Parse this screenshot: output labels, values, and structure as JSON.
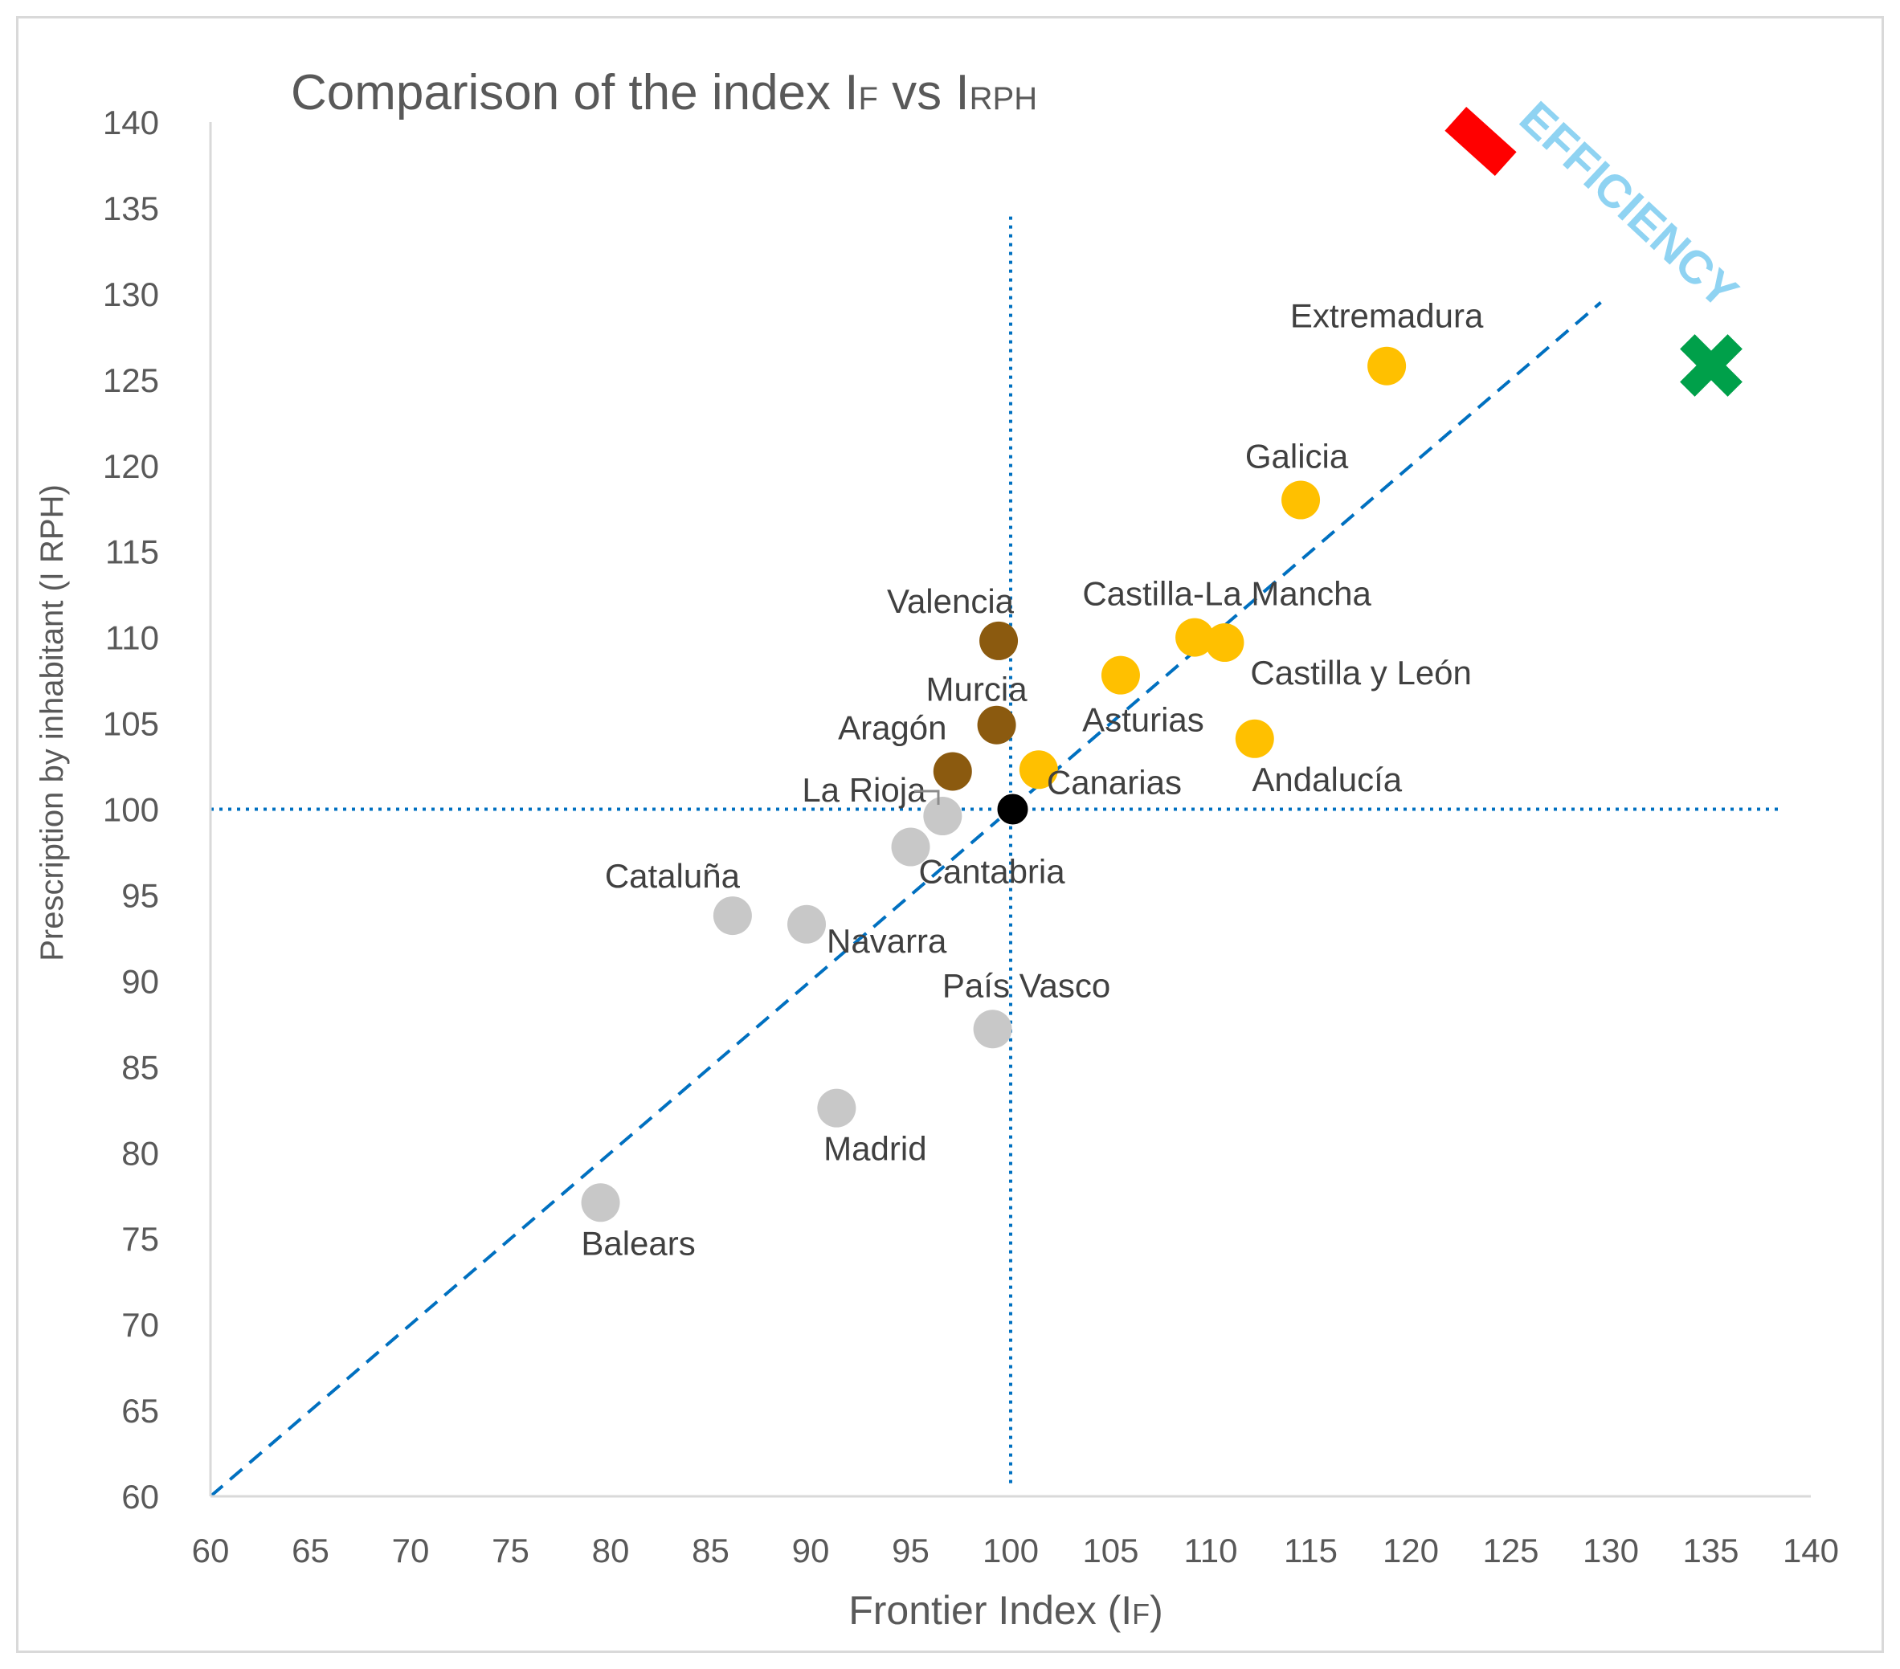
{
  "chart_data": {
    "type": "scatter",
    "title_main": "Comparison of the index I",
    "title_sub1": "F",
    "title_mid": " vs I",
    "title_sub2": "RPH",
    "xlabel_main": "Frontier Index (I",
    "xlabel_sub": "F",
    "xlabel_end": ")",
    "ylabel": "Prescription by inhabitant (I RPH)",
    "xlim": [
      60,
      140
    ],
    "ylim": [
      60,
      140
    ],
    "xticks": [
      "60",
      "65",
      "70",
      "75",
      "80",
      "85",
      "90",
      "95",
      "100",
      "105",
      "110",
      "115",
      "120",
      "125",
      "130",
      "135",
      "140"
    ],
    "yticks": [
      "60",
      "65",
      "70",
      "75",
      "80",
      "85",
      "90",
      "95",
      "100",
      "105",
      "110",
      "115",
      "120",
      "125",
      "130",
      "135",
      "140"
    ],
    "reference_x": 100,
    "reference_y": 100,
    "diagonal": {
      "from": [
        60,
        60
      ],
      "to": [
        129.5,
        129.5
      ]
    },
    "efficiency_label": "EFFICIENCY",
    "colors": {
      "yellow": "#ffc000",
      "brown": "#8b5a0f",
      "grey": "#c8c8c8",
      "reference": "#000000",
      "lines": "#0070c0"
    },
    "points": [
      {
        "label": "Extremadura",
        "x": 118.8,
        "y": 125.8,
        "group": "yellow"
      },
      {
        "label": "Galicia",
        "x": 114.5,
        "y": 118.0,
        "group": "yellow"
      },
      {
        "label": "Castilla-La Mancha",
        "x": 109.2,
        "y": 110.0,
        "group": "yellow"
      },
      {
        "label": "Castilla y León",
        "x": 110.7,
        "y": 109.7,
        "group": "yellow"
      },
      {
        "label": "Asturias",
        "x": 105.5,
        "y": 107.8,
        "group": "yellow"
      },
      {
        "label": "Andalucía",
        "x": 112.2,
        "y": 104.1,
        "group": "yellow"
      },
      {
        "label": "Canarias",
        "x": 101.4,
        "y": 102.3,
        "group": "yellow"
      },
      {
        "label": "Valencia",
        "x": 99.4,
        "y": 109.8,
        "group": "brown"
      },
      {
        "label": "Murcia",
        "x": 99.3,
        "y": 104.9,
        "group": "brown"
      },
      {
        "label": "Aragón",
        "x": 97.1,
        "y": 102.2,
        "group": "brown"
      },
      {
        "label": "",
        "x": 100.1,
        "y": 100.0,
        "group": "reference"
      },
      {
        "label": "La Rioja",
        "x": 96.6,
        "y": 99.6,
        "group": "grey"
      },
      {
        "label": "Cantabria",
        "x": 95.0,
        "y": 97.8,
        "group": "grey"
      },
      {
        "label": "Cataluña",
        "x": 86.1,
        "y": 93.8,
        "group": "grey"
      },
      {
        "label": "Navarra",
        "x": 89.8,
        "y": 93.3,
        "group": "grey"
      },
      {
        "label": "País Vasco",
        "x": 99.1,
        "y": 87.2,
        "group": "grey"
      },
      {
        "label": "Madrid",
        "x": 91.3,
        "y": 82.6,
        "group": "grey"
      },
      {
        "label": "Balears",
        "x": 79.5,
        "y": 77.1,
        "group": "grey"
      }
    ]
  }
}
